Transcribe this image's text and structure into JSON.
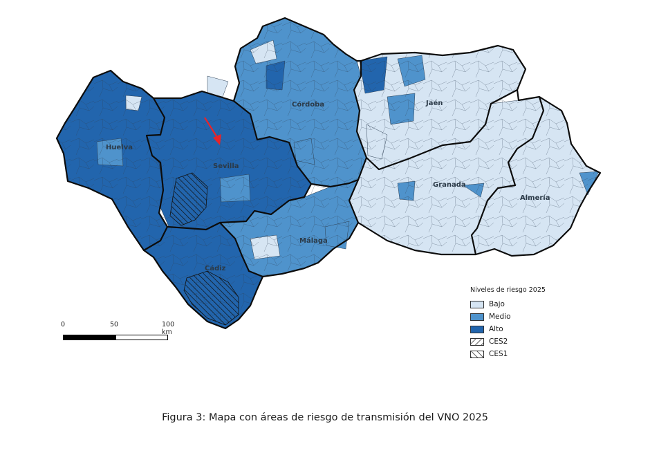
{
  "map": {
    "provinces": [
      {
        "id": "huelva",
        "name": "Huelva",
        "level": "Alto"
      },
      {
        "id": "sevilla",
        "name": "Sevilla",
        "level": "Alto"
      },
      {
        "id": "cordoba",
        "name": "Córdoba",
        "level": "Medio"
      },
      {
        "id": "jaen",
        "name": "Jaén",
        "level": "Bajo"
      },
      {
        "id": "granada",
        "name": "Granada",
        "level": "Bajo"
      },
      {
        "id": "almeria",
        "name": "Almería",
        "level": "Bajo"
      },
      {
        "id": "malaga",
        "name": "Málaga",
        "level": "Medio"
      },
      {
        "id": "cadiz",
        "name": "Cádiz",
        "level": "Alto"
      }
    ],
    "colors": {
      "Bajo": "#d6e5f3",
      "Medio": "#4f93cc",
      "Alto": "#2265ad",
      "border": "#0c0c0c",
      "arrow": "#e8242a"
    }
  },
  "legend": {
    "title": "Niveles de riesgo 2025",
    "items": [
      {
        "label": "Bajo",
        "pattern": "Bajo"
      },
      {
        "label": "Medio",
        "pattern": "Medio"
      },
      {
        "label": "Alto",
        "pattern": "Alto"
      },
      {
        "label": "CES2",
        "pattern": "hatch-ces2"
      },
      {
        "label": "CES1",
        "pattern": "hatch-ces1"
      }
    ]
  },
  "scale": {
    "ticks": [
      "0",
      "50",
      "100 km"
    ]
  },
  "caption": "Figura 3: Mapa con áreas de riesgo de transmisión del VNO 2025"
}
